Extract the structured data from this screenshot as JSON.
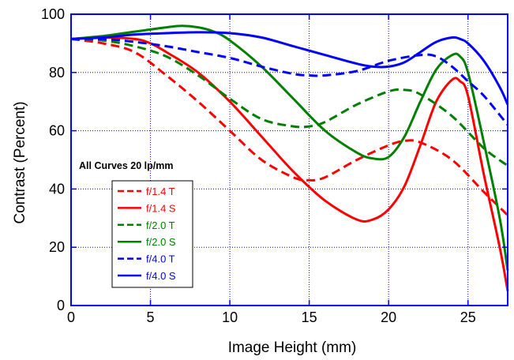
{
  "chart_data": {
    "type": "line",
    "title": "",
    "xlabel": "Image Height (mm)",
    "ylabel": "Contrast (Percent)",
    "xlim": [
      0,
      27.5
    ],
    "ylim": [
      0,
      100
    ],
    "x_ticks": [
      "0",
      "5",
      "10",
      "15",
      "20",
      "25"
    ],
    "y_ticks": [
      "0",
      "20",
      "40",
      "60",
      "80",
      "100"
    ],
    "grid": true,
    "legend_position": "left",
    "annotation": "All Curves 20 lp/mm",
    "series": [
      {
        "name": "f/1.4 T",
        "color": "#ff0000",
        "dashed": true,
        "x": [
          0,
          2,
          4,
          6,
          8,
          10,
          12,
          14,
          15,
          16,
          18,
          20,
          21,
          22,
          24,
          26,
          27.5
        ],
        "y": [
          91.5,
          90,
          87,
          79,
          70,
          60,
          50,
          44,
          43,
          44,
          50,
          55,
          56.5,
          56,
          50,
          39,
          31
        ]
      },
      {
        "name": "f/1.4 S",
        "color": "#ff0000",
        "dashed": false,
        "x": [
          0,
          2,
          4,
          5,
          6,
          8,
          10,
          12,
          14,
          16,
          18,
          19,
          20,
          21,
          22,
          23,
          24,
          24.5,
          25,
          26,
          27,
          27.5
        ],
        "y": [
          91.5,
          92,
          91.5,
          90,
          87,
          80,
          70,
          58,
          46,
          36,
          29.5,
          29.5,
          33,
          41,
          55,
          70,
          77.5,
          77,
          72,
          45,
          20,
          5
        ]
      },
      {
        "name": "f/2.0 T",
        "color": "#008000",
        "dashed": true,
        "x": [
          0,
          2,
          4,
          6,
          8,
          10,
          12,
          14,
          15,
          16,
          18,
          20,
          21,
          22,
          24,
          26,
          27.5
        ],
        "y": [
          91.5,
          91,
          89,
          85.5,
          79,
          71,
          64,
          61.5,
          61.5,
          63,
          69,
          73.5,
          74,
          72.5,
          65,
          54,
          48
        ]
      },
      {
        "name": "f/2.0 S",
        "color": "#008000",
        "dashed": false,
        "x": [
          0,
          2,
          4,
          6,
          7,
          8,
          9,
          10,
          12,
          14,
          16,
          18,
          19,
          20,
          21,
          22,
          23,
          24,
          24.5,
          25,
          26,
          27,
          27.5
        ],
        "y": [
          91.5,
          92.5,
          94,
          95.5,
          96,
          95.5,
          94,
          91,
          82,
          71,
          60,
          52.5,
          50.5,
          51,
          58,
          70,
          81,
          86,
          85.5,
          80,
          56,
          30,
          12
        ]
      },
      {
        "name": "f/4.0 T",
        "color": "#0000ff",
        "dashed": true,
        "x": [
          0,
          2,
          4,
          6,
          8,
          10,
          12,
          14,
          15,
          16,
          18,
          20,
          22,
          23,
          24,
          25,
          26,
          27.5
        ],
        "y": [
          91.5,
          91.5,
          90.5,
          89,
          87,
          85,
          82,
          79.5,
          79,
          79,
          80.5,
          84,
          86,
          85.5,
          82,
          77,
          72,
          62
        ]
      },
      {
        "name": "f/4.0 S",
        "color": "#0000ff",
        "dashed": false,
        "x": [
          0,
          2,
          4,
          6,
          8,
          10,
          12,
          14,
          16,
          18,
          19,
          20,
          21,
          22,
          23,
          24,
          24.5,
          25,
          26,
          27,
          27.5
        ],
        "y": [
          91.5,
          92,
          93,
          93.5,
          93.8,
          93.5,
          92,
          89,
          86,
          83,
          82,
          82,
          83.5,
          87,
          90.5,
          92,
          91.5,
          90,
          84,
          75,
          69
        ]
      }
    ]
  }
}
